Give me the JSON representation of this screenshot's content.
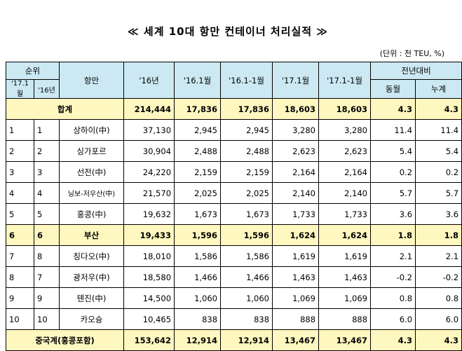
{
  "title": "≪ 세계 10대 항만 컨테이너 처리실적 ≫",
  "unit": "(단위 : 천 TEU, %)",
  "headers": {
    "rank": "순위",
    "rank_17": "'17.1월",
    "rank_16": "'16년",
    "port": "항만",
    "col_16": "'16년",
    "col_16_1": "'16.1월",
    "col_16_1_1": "'16.1-1월",
    "col_17_1": "'17.1월",
    "col_17_1_1": "'17.1-1월",
    "yoy": "전년대비",
    "same_month": "동월",
    "cumulative": "누계"
  },
  "total": {
    "label": "합계",
    "v16": "214,444",
    "v16_1": "17,836",
    "v16_1_1": "17,836",
    "v17_1": "18,603",
    "v17_1_1": "18,603",
    "same": "4.3",
    "cum": "4.3"
  },
  "rows": [
    {
      "r17": "1",
      "r16": "1",
      "port": "상하이(中)",
      "v16": "37,130",
      "v16_1": "2,945",
      "v16_1_1": "2,945",
      "v17_1": "3,280",
      "v17_1_1": "3,280",
      "same": "11.4",
      "cum": "11.4"
    },
    {
      "r17": "2",
      "r16": "2",
      "port": "싱가포르",
      "v16": "30,904",
      "v16_1": "2,488",
      "v16_1_1": "2,488",
      "v17_1": "2,623",
      "v17_1_1": "2,623",
      "same": "5.4",
      "cum": "5.4"
    },
    {
      "r17": "3",
      "r16": "3",
      "port": "선전(中)",
      "v16": "24,220",
      "v16_1": "2,159",
      "v16_1_1": "2,159",
      "v17_1": "2,164",
      "v17_1_1": "2,164",
      "same": "0.2",
      "cum": "0.2"
    },
    {
      "r17": "4",
      "r16": "4",
      "port": "닝보-저우산(中)",
      "v16": "21,570",
      "v16_1": "2,025",
      "v16_1_1": "2,025",
      "v17_1": "2,140",
      "v17_1_1": "2,140",
      "same": "5.7",
      "cum": "5.7"
    },
    {
      "r17": "5",
      "r16": "5",
      "port": "홍콩(中)",
      "v16": "19,632",
      "v16_1": "1,673",
      "v16_1_1": "1,673",
      "v17_1": "1,733",
      "v17_1_1": "1,733",
      "same": "3.6",
      "cum": "3.6"
    },
    {
      "r17": "6",
      "r16": "6",
      "port": "부산",
      "v16": "19,433",
      "v16_1": "1,596",
      "v16_1_1": "1,596",
      "v17_1": "1,624",
      "v17_1_1": "1,624",
      "same": "1.8",
      "cum": "1.8"
    },
    {
      "r17": "7",
      "r16": "8",
      "port": "칭다오(中)",
      "v16": "18,010",
      "v16_1": "1,586",
      "v16_1_1": "1,586",
      "v17_1": "1,619",
      "v17_1_1": "1,619",
      "same": "2.1",
      "cum": "2.1"
    },
    {
      "r17": "8",
      "r16": "7",
      "port": "광저우(中)",
      "v16": "18,580",
      "v16_1": "1,466",
      "v16_1_1": "1,466",
      "v17_1": "1,463",
      "v17_1_1": "1,463",
      "same": "-0.2",
      "cum": "-0.2"
    },
    {
      "r17": "9",
      "r16": "9",
      "port": "톈진(中)",
      "v16": "14,500",
      "v16_1": "1,060",
      "v16_1_1": "1,060",
      "v17_1": "1,069",
      "v17_1_1": "1,069",
      "same": "0.8",
      "cum": "0.8"
    },
    {
      "r17": "10",
      "r16": "10",
      "port": "카오슝",
      "v16": "10,465",
      "v16_1": "838",
      "v16_1_1": "838",
      "v17_1": "888",
      "v17_1_1": "888",
      "same": "6.0",
      "cum": "6.0"
    }
  ],
  "china_total": {
    "label": "중국계(홍콩포함)",
    "v16": "153,642",
    "v16_1": "12,914",
    "v16_1_1": "12,914",
    "v17_1": "13,467",
    "v17_1_1": "13,467",
    "same": "4.3",
    "cum": "4.3"
  },
  "colors": {
    "header_bg": "#cce9f3",
    "highlight_bg": "#fff7c0"
  }
}
